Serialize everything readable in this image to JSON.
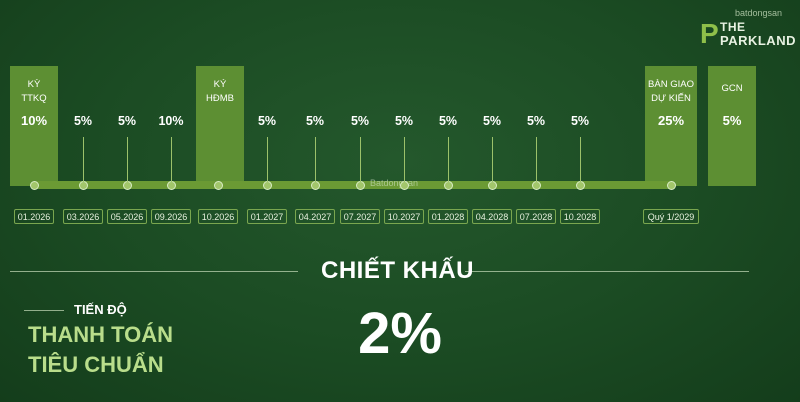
{
  "brand": {
    "line1": "THE",
    "line2": "PARKLAND",
    "watermark": "batdongsan",
    "mid_watermark": "Batdongsan"
  },
  "milestones": [
    {
      "label": "KỲ\nTTKQ",
      "pct": "10%",
      "date": "01.2026",
      "panel": true
    },
    {
      "pct": "5%",
      "date": "03.2026"
    },
    {
      "pct": "5%",
      "date": "05.2026"
    },
    {
      "pct": "10%",
      "date": "09.2026"
    },
    {
      "label": "KÝ\nHĐMB",
      "pct": "",
      "date": "10.2026",
      "panel": true
    },
    {
      "pct": "5%",
      "date": "01.2027"
    },
    {
      "pct": "5%",
      "date": "04.2027"
    },
    {
      "pct": "5%",
      "date": "07.2027"
    },
    {
      "pct": "5%",
      "date": "10.2027"
    },
    {
      "pct": "5%",
      "date": "01.2028"
    },
    {
      "pct": "5%",
      "date": "04.2028"
    },
    {
      "pct": "5%",
      "date": "07.2028"
    },
    {
      "pct": "5%",
      "date": "10.2028"
    },
    {
      "label": "BÀN GIAO\nDỰ KIẾN",
      "pct": "25%",
      "date": "Quý 1/2029",
      "panel": true
    },
    {
      "label": "GCN",
      "pct": "5%",
      "date": "",
      "panel": true
    }
  ],
  "discount": {
    "title": "CHIẾT KHẤU",
    "value": "2%"
  },
  "schedule": {
    "label": "TIẾN ĐỘ",
    "line1": "THANH TOÁN",
    "line2": "TIÊU CHUẨN"
  }
}
